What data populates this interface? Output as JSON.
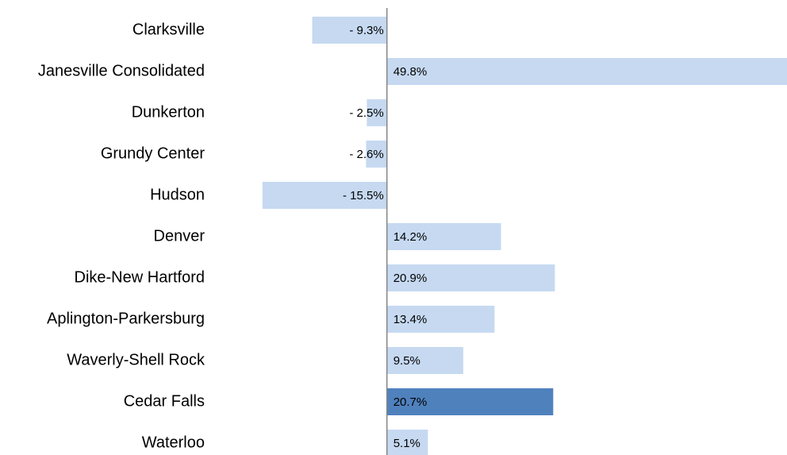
{
  "chart_data": {
    "type": "bar",
    "orientation": "horizontal",
    "categories": [
      "Clarksville",
      "Janesville Consolidated",
      "Dunkerton",
      "Grundy Center",
      "Hudson",
      "Denver",
      "Dike-New Hartford",
      "Aplington-Parkersburg",
      "Waverly-Shell Rock",
      "Cedar Falls",
      "Waterloo"
    ],
    "values": [
      -9.3,
      49.8,
      -2.5,
      -2.6,
      -15.5,
      14.2,
      20.9,
      13.4,
      9.5,
      20.7,
      5.1
    ],
    "value_labels": [
      "- 9.3%",
      "49.8%",
      "- 2.5%",
      "- 2.6%",
      "- 15.5%",
      "14.2%",
      "20.9%",
      "13.4%",
      "9.5%",
      "20.7%",
      "5.1%"
    ],
    "colors": [
      "#c6d9f1",
      "#c6d9f1",
      "#c6d9f1",
      "#c6d9f1",
      "#c6d9f1",
      "#c6d9f1",
      "#c6d9f1",
      "#c6d9f1",
      "#c6d9f1",
      "#4f81bd",
      "#c6d9f1"
    ],
    "xlim": [
      -21.5,
      49.8
    ]
  }
}
